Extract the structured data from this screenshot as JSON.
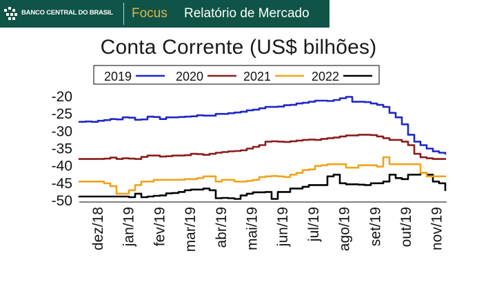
{
  "header": {
    "institution": "BANCO CENTRAL DO BRASIL",
    "product": "Focus",
    "report": "Relatório de Mercado",
    "product_color": "#e0b64c",
    "banner_color": "#0f5446"
  },
  "chart_data": {
    "type": "line",
    "title": "Conta Corrente (US$ bilhões)",
    "xlabel": "",
    "ylabel": "",
    "ylim": [
      -50,
      -20
    ],
    "yticks": [
      -20,
      -25,
      -30,
      -35,
      -40,
      -45,
      -50
    ],
    "x_tick_labels": [
      "dez/18",
      "jan/19",
      "fev/19",
      "mar/19",
      "abr/19",
      "mai/19",
      "jun/19",
      "jul/19",
      "ago/19",
      "set/19",
      "out/19",
      "nov/19"
    ],
    "grid": false,
    "legend_position": "top",
    "series": [
      {
        "name": "2019",
        "color": "#1c27c9",
        "values": [
          -27.3,
          -27.2,
          -27.3,
          -27.0,
          -26.8,
          -26.5,
          -26.6,
          -26.0,
          -26.1,
          -26.7,
          -26.6,
          -25.8,
          -25.9,
          -26.5,
          -26.0,
          -26.0,
          -25.9,
          -25.8,
          -25.7,
          -25.4,
          -25.5,
          -25.5,
          -25.0,
          -25.0,
          -24.8,
          -24.6,
          -24.4,
          -24.0,
          -23.8,
          -23.4,
          -23.0,
          -23.0,
          -22.9,
          -22.5,
          -22.4,
          -22.0,
          -21.8,
          -21.5,
          -21.2,
          -21.2,
          -21.3,
          -21.0,
          -20.5,
          -20.1,
          -21.5,
          -21.5,
          -21.6,
          -22.0,
          -22.4,
          -23.0,
          -24.7,
          -26.0,
          -28.0,
          -31.0,
          -33.0,
          -34.0,
          -35.0,
          -35.8,
          -36.2,
          -36.5
        ]
      },
      {
        "name": "2020",
        "color": "#8b1a1a",
        "values": [
          -38.0,
          -38.0,
          -38.0,
          -38.0,
          -37.9,
          -37.6,
          -38.0,
          -37.8,
          -37.9,
          -38.0,
          -37.4,
          -37.0,
          -37.0,
          -37.3,
          -37.2,
          -37.0,
          -37.0,
          -36.9,
          -36.5,
          -36.6,
          -36.8,
          -36.5,
          -36.2,
          -36.0,
          -35.8,
          -35.7,
          -35.5,
          -35.0,
          -34.5,
          -34.0,
          -33.0,
          -32.9,
          -33.0,
          -33.1,
          -32.9,
          -32.7,
          -32.5,
          -32.4,
          -32.5,
          -32.2,
          -32.0,
          -31.8,
          -31.5,
          -31.2,
          -31.2,
          -31.0,
          -31.0,
          -31.1,
          -31.5,
          -32.0,
          -32.5,
          -32.5,
          -33.0,
          -34.0,
          -36.5,
          -37.5,
          -37.8,
          -38.0,
          -38.0,
          -38.0
        ]
      },
      {
        "name": "2021",
        "color": "#f0a31a",
        "values": [
          -44.5,
          -44.5,
          -44.5,
          -44.5,
          -45.0,
          -45.8,
          -48.0,
          -48.0,
          -47.0,
          -45.5,
          -44.5,
          -44.5,
          -44.0,
          -44.0,
          -44.0,
          -44.0,
          -44.0,
          -43.8,
          -43.8,
          -43.5,
          -43.0,
          -43.0,
          -44.5,
          -44.0,
          -44.0,
          -44.5,
          -44.5,
          -44.3,
          -44.0,
          -43.2,
          -43.0,
          -42.9,
          -43.0,
          -43.2,
          -42.5,
          -42.0,
          -41.2,
          -41.0,
          -40.0,
          -39.8,
          -39.5,
          -39.5,
          -39.5,
          -40.5,
          -40.5,
          -39.8,
          -39.8,
          -39.8,
          -40.2,
          -37.5,
          -39.5,
          -39.5,
          -39.5,
          -39.5,
          -39.5,
          -42.0,
          -43.0,
          -43.0,
          -43.0,
          -43.0
        ]
      },
      {
        "name": "2022",
        "color": "#000000",
        "values": [
          -48.8,
          -48.8,
          -48.8,
          -48.8,
          -48.8,
          -48.8,
          -48.8,
          -48.8,
          -49.0,
          -48.0,
          -49.0,
          -48.8,
          -48.6,
          -48.5,
          -47.9,
          -47.8,
          -47.5,
          -47.0,
          -46.8,
          -46.8,
          -46.5,
          -47.0,
          -49.3,
          -49.2,
          -49.3,
          -49.5,
          -48.5,
          -48.0,
          -47.6,
          -47.6,
          -47.5,
          -49.5,
          -47.5,
          -47.5,
          -46.5,
          -46.5,
          -46.0,
          -45.5,
          -45.5,
          -45.5,
          -43.0,
          -42.5,
          -45.0,
          -45.3,
          -45.3,
          -45.4,
          -45.5,
          -45.0,
          -45.0,
          -44.5,
          -42.5,
          -43.5,
          -43.8,
          -42.5,
          -42.5,
          -42.0,
          -42.5,
          -44.5,
          -45.0,
          -47.0
        ]
      }
    ]
  }
}
